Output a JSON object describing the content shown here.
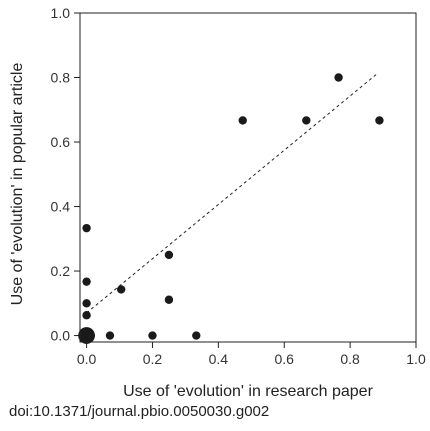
{
  "chart_data": {
    "type": "scatter",
    "xlabel": "Use of 'evolution' in research paper",
    "ylabel": "Use of 'evolution' in popular article",
    "xlim": [
      -0.02,
      1.0
    ],
    "ylim": [
      -0.02,
      1.0
    ],
    "xticks": [
      "0.0",
      "0.2",
      "0.4",
      "0.6",
      "0.8",
      "1.0"
    ],
    "yticks": [
      "0.0",
      "0.2",
      "0.4",
      "0.6",
      "0.8",
      "1.0"
    ],
    "points": [
      {
        "x": 0.0,
        "y": 0.333,
        "size": 1
      },
      {
        "x": 0.0,
        "y": 0.167,
        "size": 1
      },
      {
        "x": 0.0,
        "y": 0.1,
        "size": 1
      },
      {
        "x": 0.0,
        "y": 0.063,
        "size": 1
      },
      {
        "x": 0.0,
        "y": 0.0,
        "size": 4
      },
      {
        "x": 0.071,
        "y": 0.0,
        "size": 1
      },
      {
        "x": 0.2,
        "y": 0.0,
        "size": 1
      },
      {
        "x": 0.333,
        "y": 0.0,
        "size": 1
      },
      {
        "x": 0.105,
        "y": 0.143,
        "size": 1
      },
      {
        "x": 0.25,
        "y": 0.25,
        "size": 1
      },
      {
        "x": 0.25,
        "y": 0.111,
        "size": 1
      },
      {
        "x": 0.474,
        "y": 0.667,
        "size": 1
      },
      {
        "x": 0.667,
        "y": 0.667,
        "size": 1
      },
      {
        "x": 0.765,
        "y": 0.8,
        "size": 1
      },
      {
        "x": 0.889,
        "y": 0.667,
        "size": 1
      }
    ],
    "trendline": {
      "style": "dashed",
      "x": [
        0.0,
        0.88
      ],
      "y": [
        0.07,
        0.81
      ]
    },
    "grid": false,
    "legend": "none"
  },
  "footer": {
    "doi": "doi:10.1371/journal.pbio.0050030.g002"
  },
  "colors": {
    "marker": "#1a1a1a",
    "axis": "#222222",
    "text": "#222222",
    "background": "#ffffff"
  }
}
